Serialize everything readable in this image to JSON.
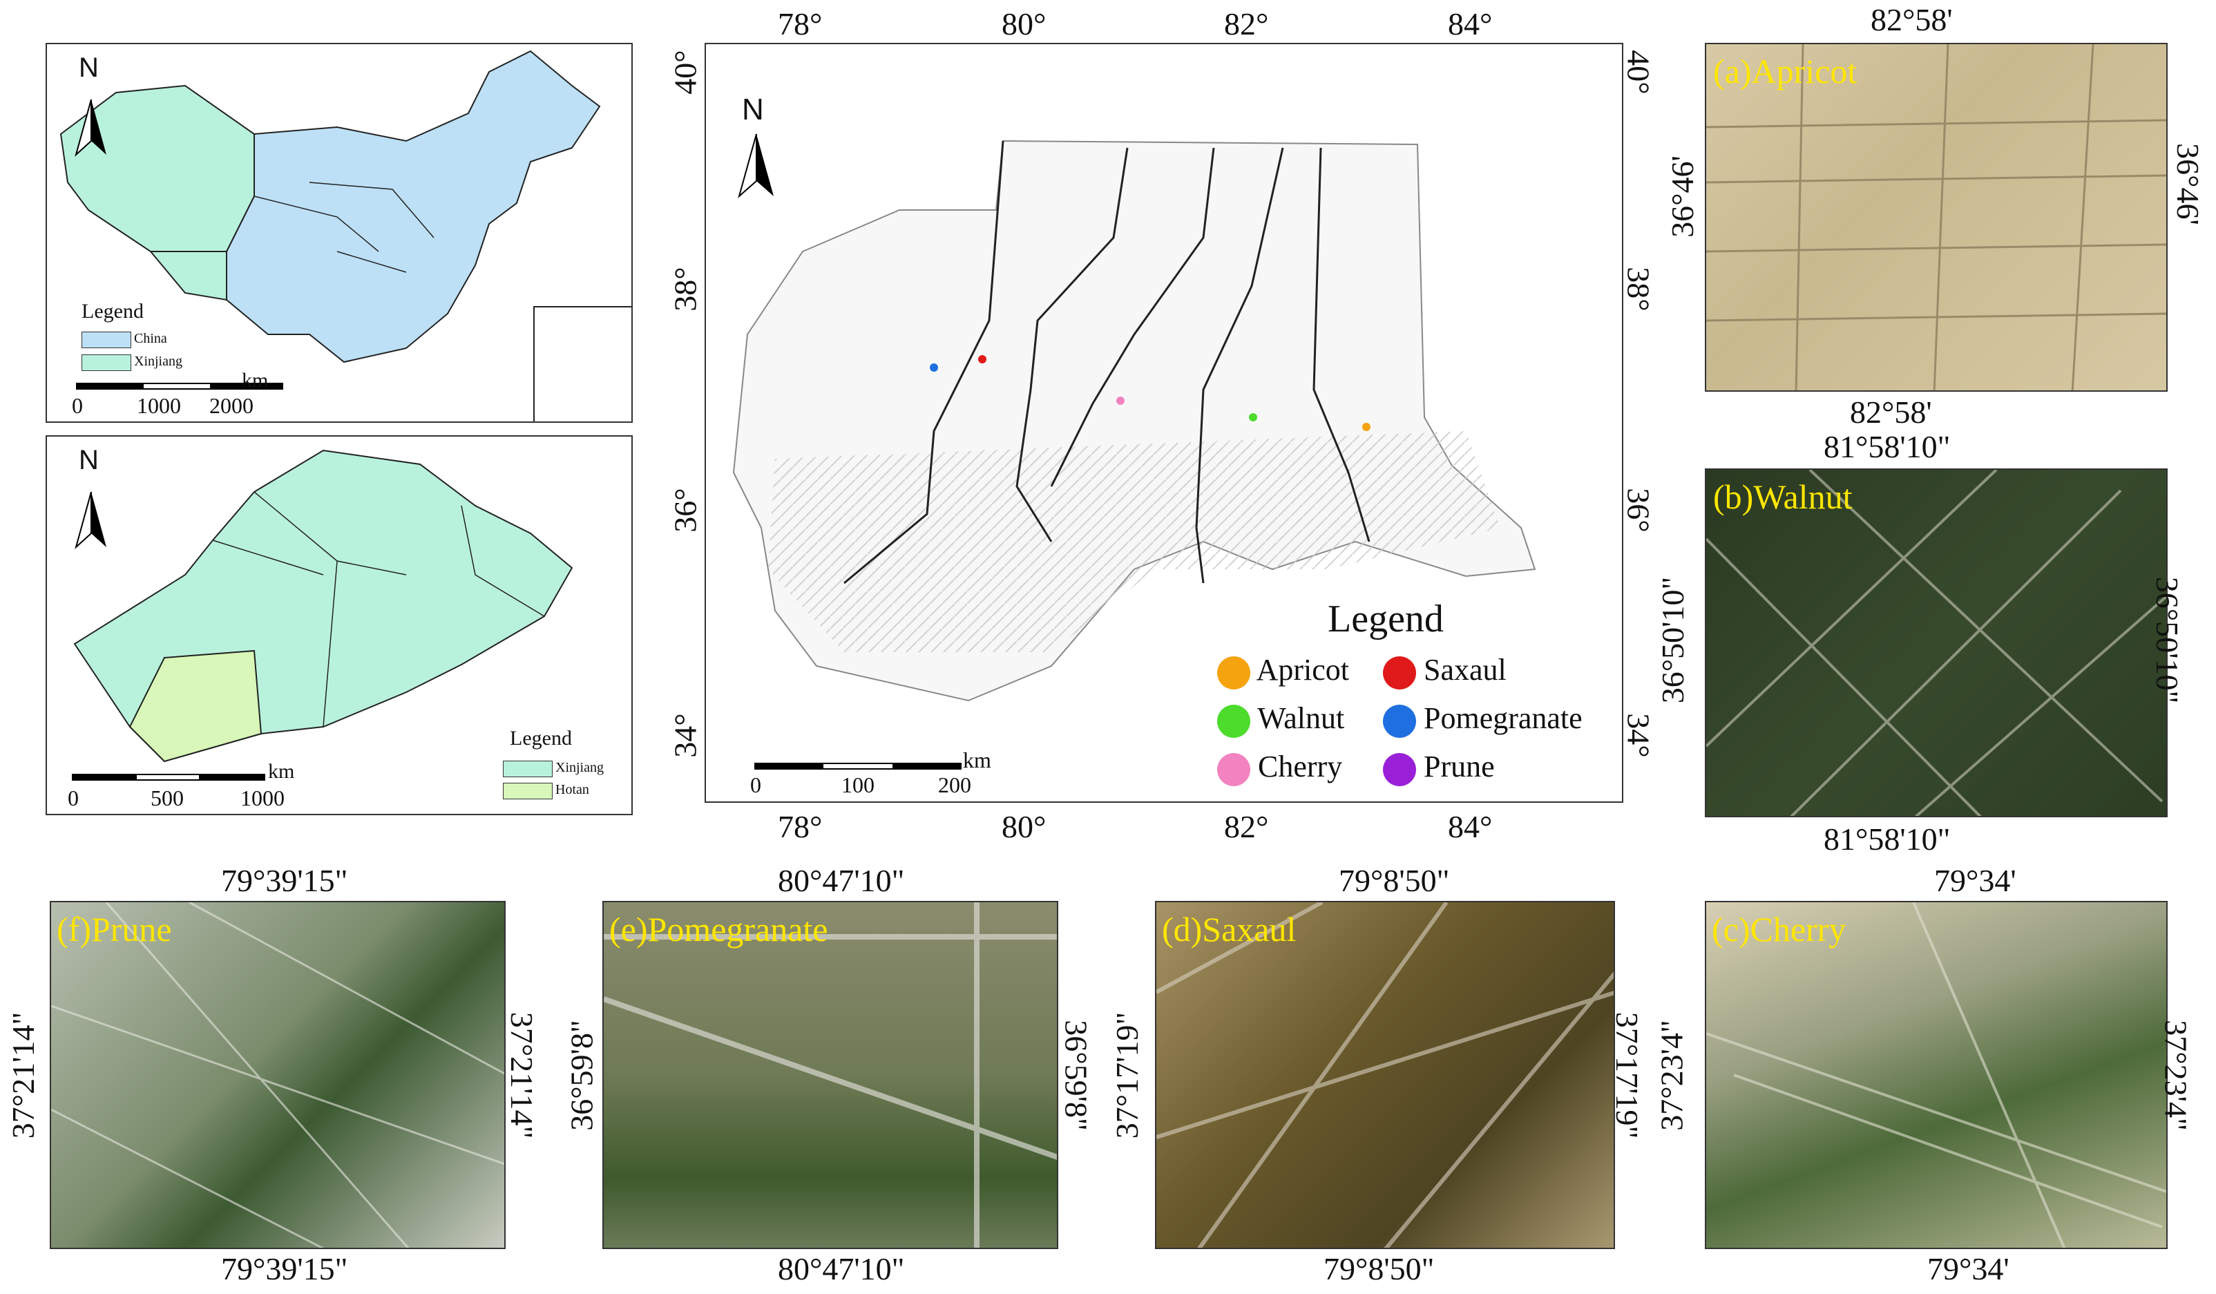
{
  "china": {
    "north": "N",
    "legend_title": "Legend",
    "legend_items": [
      {
        "label": "China",
        "color": "#bde0f6"
      },
      {
        "label": "Xinjiang",
        "color": "#b9f2dc"
      }
    ],
    "scale_unit": "km",
    "scale_ticks": [
      "0",
      "1000",
      "2000"
    ]
  },
  "xinjiang": {
    "north": "N",
    "legend_title": "Legend",
    "legend_items": [
      {
        "label": "Xinjiang",
        "color": "#b9f2dc"
      },
      {
        "label": "Hotan",
        "color": "#d8f7b8"
      }
    ],
    "scale_unit": "km",
    "scale_ticks": [
      "0",
      "500",
      "1000"
    ]
  },
  "main_map": {
    "north": "N",
    "top_lon": [
      "78°",
      "80°",
      "82°",
      "84°"
    ],
    "bottom_lon": [
      "78°",
      "80°",
      "82°",
      "84°"
    ],
    "left_lat": [
      "40°",
      "38°",
      "36°",
      "34°"
    ],
    "right_lat": [
      "40°",
      "38°",
      "36°",
      "34°"
    ],
    "scale_unit": "km",
    "scale_ticks": [
      "0",
      "100",
      "200"
    ],
    "legend_title": "Legend",
    "legend_items": [
      {
        "label": "Apricot",
        "color": "#f5a30f"
      },
      {
        "label": "Saxaul",
        "color": "#e01a1a"
      },
      {
        "label": "Walnut",
        "color": "#4ddb2c"
      },
      {
        "label": "Pomegranate",
        "color": "#1f6fe0"
      },
      {
        "label": "Cherry",
        "color": "#f283c0"
      },
      {
        "label": "Prune",
        "color": "#9a20d8"
      }
    ]
  },
  "insets": {
    "a": {
      "label": "(a)Apricot",
      "top": "82°58'",
      "bottom": "82°58'",
      "left": "36°46'",
      "right": "36°46'"
    },
    "b": {
      "label": "(b)Walnut",
      "top": "81°58'10\"",
      "bottom": "81°58'10\"",
      "left": "36°50'10\"",
      "right": "36°50'10\""
    },
    "c": {
      "label": "(c)Cherry",
      "top": "79°34'",
      "bottom": "79°34'",
      "left": "37°23'4\"",
      "right": "37°23'4\""
    },
    "d": {
      "label": "(d)Saxaul",
      "top": "79°8'50\"",
      "bottom": "79°8'50\"",
      "left": "37°17'19\"",
      "right": "37°17'19\""
    },
    "e": {
      "label": "(e)Pomegranate",
      "top": "80°47'10\"",
      "bottom": "80°47'10\"",
      "left": "36°59'8\"",
      "right": "36°59'8\""
    },
    "f": {
      "label": "(f)Prune",
      "top": "79°39'15\"",
      "bottom": "79°39'15\"",
      "left": "37°21'14\"",
      "right": "37°21'14\""
    }
  }
}
